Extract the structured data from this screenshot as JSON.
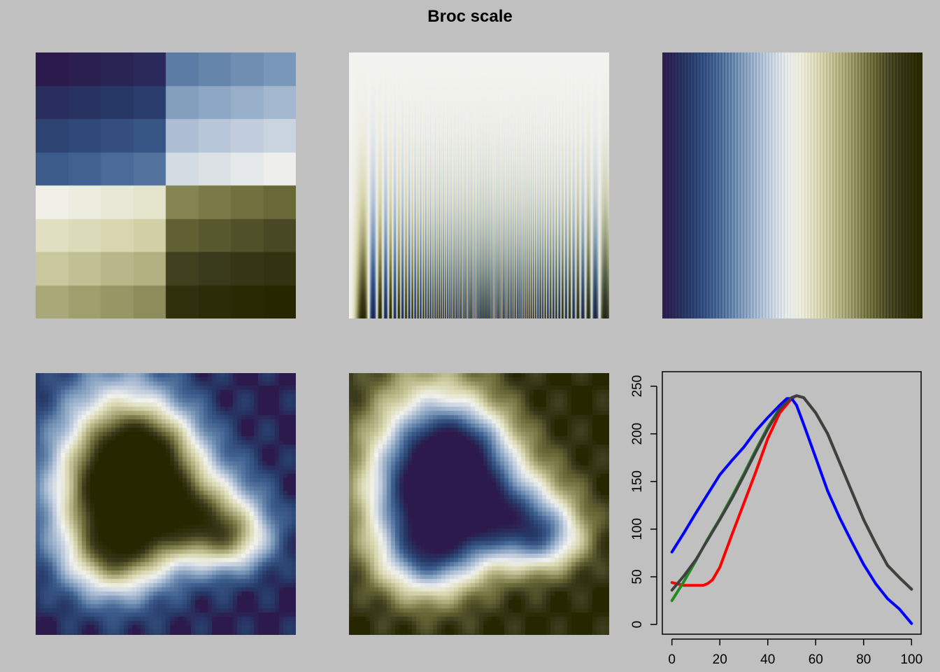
{
  "title": "Broc scale",
  "colors": {
    "background": "#c0c0c0",
    "red": "#ff0000",
    "green": "#228b22",
    "blue": "#0000ff",
    "luminance": "#404040"
  },
  "palette_broc": [
    "#2c1a4c",
    "#273a68",
    "#3d5e8e",
    "#7896b8",
    "#bac8db",
    "#f2f2ee",
    "#d9d8b1",
    "#a9a777",
    "#6d6d3b",
    "#3a3a1c",
    "#262600"
  ],
  "panels": [
    {
      "kind": "tile-grid",
      "description": "8x8 grid of swatches"
    },
    {
      "kind": "sine-ramp",
      "description": "colormap test pattern"
    },
    {
      "kind": "striped-ramp",
      "description": "horizontal ramp with stripes"
    },
    {
      "kind": "volcano",
      "description": "topography with palette"
    },
    {
      "kind": "volcano-reversed",
      "description": "topography with reversed palette"
    }
  ],
  "chart_data": {
    "type": "line",
    "title": "",
    "xlabel": "",
    "ylabel": "",
    "xlim": [
      0,
      100
    ],
    "ylim": [
      0,
      255
    ],
    "x_ticks": [
      0,
      20,
      40,
      60,
      80,
      100
    ],
    "y_ticks": [
      0,
      50,
      100,
      150,
      200,
      250
    ],
    "grid": false,
    "series": [
      {
        "color": "#ff0000",
        "x": [
          0,
          5,
          10,
          13,
          15,
          17,
          20,
          25,
          30,
          35,
          40,
          45,
          50,
          52,
          55,
          60,
          65,
          70,
          75,
          80,
          85,
          90,
          95,
          100
        ],
        "y": [
          44,
          41,
          41,
          41,
          43,
          47,
          60,
          94,
          127,
          160,
          195,
          222,
          237,
          240,
          238,
          222,
          200,
          170,
          140,
          110,
          85,
          62,
          49,
          37
        ]
      },
      {
        "color": "#228b22",
        "x": [
          0,
          5,
          10,
          15,
          20,
          25,
          30,
          35,
          40,
          45,
          50,
          52,
          55,
          60,
          65,
          70,
          75,
          80,
          85,
          90,
          95,
          100
        ],
        "y": [
          25,
          45,
          67,
          90,
          111,
          134,
          158,
          183,
          207,
          227,
          238,
          240,
          238,
          222,
          200,
          170,
          140,
          110,
          85,
          62,
          49,
          37
        ]
      },
      {
        "color": "#0000ff",
        "x": [
          0,
          5,
          10,
          15,
          20,
          25,
          30,
          35,
          40,
          45,
          48,
          50,
          52,
          55,
          60,
          65,
          70,
          75,
          80,
          85,
          90,
          95,
          100
        ],
        "y": [
          76,
          96,
          117,
          137,
          157,
          172,
          186,
          203,
          217,
          230,
          237,
          237,
          230,
          210,
          175,
          140,
          112,
          87,
          63,
          43,
          27,
          16,
          1
        ]
      },
      {
        "color": "#404040",
        "x": [
          0,
          5,
          10,
          15,
          20,
          25,
          30,
          35,
          40,
          45,
          50,
          52,
          55,
          60,
          65,
          70,
          75,
          80,
          85,
          90,
          95,
          100
        ],
        "y": [
          36,
          51,
          68,
          89,
          110,
          132,
          156,
          181,
          205,
          226,
          238,
          240,
          238,
          222,
          200,
          170,
          140,
          110,
          85,
          62,
          49,
          37
        ]
      }
    ]
  }
}
